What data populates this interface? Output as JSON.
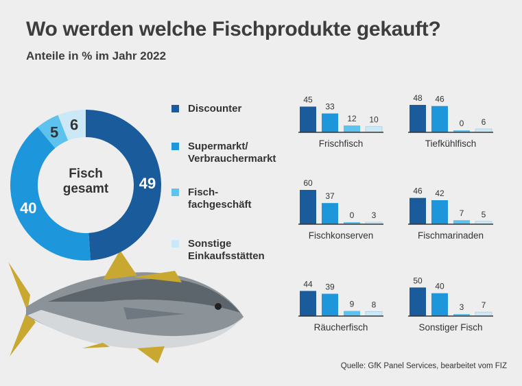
{
  "title": "Wo werden welche Fischprodukte gekauft?",
  "subtitle": "Anteile in % im Jahr 2022",
  "source": "Quelle: GfK Panel Services, bearbeitet vom FIZ",
  "colors": {
    "discounter": "#1a5b9c",
    "supermarkt": "#1e96dc",
    "fachgeschaeft": "#5dc2ed",
    "sonstige": "#cbe8f7",
    "text": "#333333"
  },
  "legend": [
    {
      "label": "Discounter",
      "color": "#1a5b9c"
    },
    {
      "label": "Supermarkt/\nVerbrauchermarkt",
      "color": "#1e96dc"
    },
    {
      "label": "Fisch-\nfachgeschäft",
      "color": "#5dc2ed"
    },
    {
      "label": "Sonstige\nEinkaufsstätten",
      "color": "#cbe8f7"
    }
  ],
  "chart_data": [
    {
      "type": "pie",
      "center_label": "Fisch\ngesamt",
      "categories": [
        "Discounter",
        "Supermarkt/Verbrauchermarkt",
        "Fischfachgeschäft",
        "Sonstige Einkaufsstätten"
      ],
      "values": [
        49,
        40,
        5,
        6
      ]
    },
    {
      "type": "bar",
      "title": "Frischfisch",
      "categories": [
        "Discounter",
        "Supermarkt/Verbrauchermarkt",
        "Fischfachgeschäft",
        "Sonstige Einkaufsstätten"
      ],
      "values": [
        45,
        33,
        12,
        10
      ],
      "ylim": [
        0,
        60
      ]
    },
    {
      "type": "bar",
      "title": "Tiefkühlfisch",
      "categories": [
        "Discounter",
        "Supermarkt/Verbrauchermarkt",
        "Fischfachgeschäft",
        "Sonstige Einkaufsstätten"
      ],
      "values": [
        48,
        46,
        0,
        6
      ],
      "ylim": [
        0,
        60
      ]
    },
    {
      "type": "bar",
      "title": "Fischkonserven",
      "categories": [
        "Discounter",
        "Supermarkt/Verbrauchermarkt",
        "Fischfachgeschäft",
        "Sonstige Einkaufsstätten"
      ],
      "values": [
        60,
        37,
        0,
        3
      ],
      "ylim": [
        0,
        60
      ]
    },
    {
      "type": "bar",
      "title": "Fischmarinaden",
      "categories": [
        "Discounter",
        "Supermarkt/Verbrauchermarkt",
        "Fischfachgeschäft",
        "Sonstige Einkaufsstätten"
      ],
      "values": [
        46,
        42,
        7,
        5
      ],
      "ylim": [
        0,
        60
      ]
    },
    {
      "type": "bar",
      "title": "Räucherfisch",
      "categories": [
        "Discounter",
        "Supermarkt/Verbrauchermarkt",
        "Fischfachgeschäft",
        "Sonstige Einkaufsstätten"
      ],
      "values": [
        44,
        39,
        9,
        8
      ],
      "ylim": [
        0,
        60
      ]
    },
    {
      "type": "bar",
      "title": "Sonstiger Fisch",
      "categories": [
        "Discounter",
        "Supermarkt/Verbrauchermarkt",
        "Fischfachgeschäft",
        "Sonstige Einkaufsstätten"
      ],
      "values": [
        50,
        40,
        3,
        7
      ],
      "ylim": [
        0,
        60
      ]
    }
  ]
}
